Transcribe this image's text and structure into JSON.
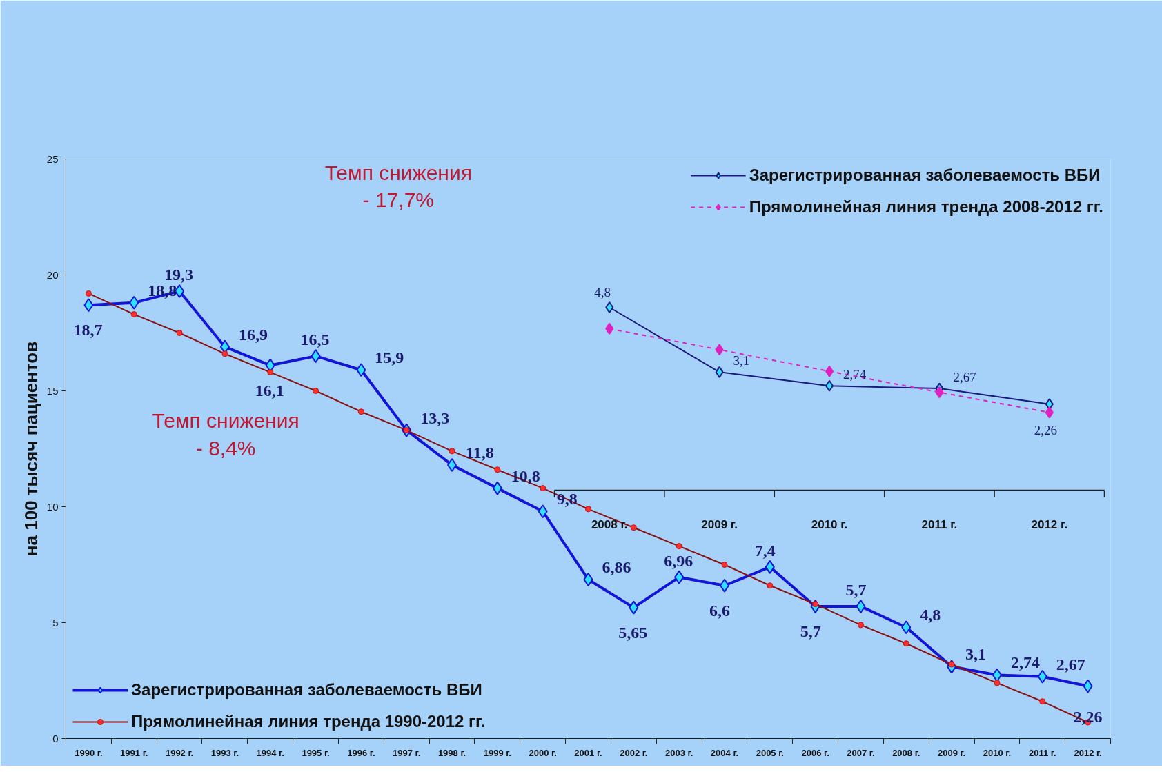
{
  "chart_data": [
    {
      "type": "line",
      "ylabel": "на 100 тысяч пациентов",
      "categories": [
        "1990 г.",
        "1991 г.",
        "1992 г.",
        "1993 г.",
        "1994 г.",
        "1995 г.",
        "1996 г.",
        "1997 г.",
        "1998 г.",
        "1999 г.",
        "2000 г.",
        "2001 г.",
        "2002 г.",
        "2003 г.",
        "2004 г.",
        "2005 г.",
        "2006 г.",
        "2007 г.",
        "2008 г.",
        "2009 г.",
        "2010 г.",
        "2011 г.",
        "2012 г."
      ],
      "series": [
        {
          "name": "Зарегистрированная заболеваемость ВБИ",
          "color": "#1414d8",
          "marker": "diamond",
          "values": [
            18.7,
            18.8,
            19.3,
            16.9,
            16.1,
            16.5,
            15.9,
            13.3,
            11.8,
            10.8,
            9.8,
            6.86,
            5.65,
            6.96,
            6.6,
            7.4,
            5.7,
            5.7,
            4.8,
            3.1,
            2.74,
            2.67,
            2.26
          ],
          "value_labels": [
            "18,7",
            "18,8",
            "19,3",
            "16,9",
            "16,1",
            "16,5",
            "15,9",
            "13,3",
            "11,8",
            "10,8",
            "9,8",
            "6,86",
            "5,65",
            "6,96",
            "6,6",
            "7,4",
            "5,7",
            "5,7",
            "4,8",
            "3,1",
            "2,74",
            "2,67",
            "2,26"
          ]
        },
        {
          "name": "Прямолинейная линия тренда 1990-2012 гг.",
          "color": "#8b1010",
          "marker": "circle",
          "values": [
            19.2,
            18.3,
            17.5,
            16.6,
            15.8,
            15.0,
            14.1,
            13.3,
            12.4,
            11.6,
            10.8,
            9.9,
            9.1,
            8.3,
            7.5,
            6.6,
            5.8,
            4.9,
            4.1,
            3.2,
            2.4,
            1.6,
            0.7
          ]
        }
      ],
      "ylim": [
        0,
        25
      ],
      "yticks": [
        0,
        5,
        10,
        15,
        20,
        25
      ],
      "grid": false,
      "legend": "bottom left",
      "annotations": [
        "Темп снижения\n- 8,4%",
        "Темп снижения\n- 17,7%"
      ]
    },
    {
      "type": "line",
      "categories": [
        "2008 г.",
        "2009 г.",
        "2010 г.",
        "2011 г.",
        "2012 г."
      ],
      "series": [
        {
          "name": "Зарегистрированная заболеваемость ВБИ",
          "color": "#1a1a80",
          "marker": "diamond",
          "values": [
            4.8,
            3.1,
            2.74,
            2.67,
            2.26
          ],
          "value_labels": [
            "4,8",
            "3,1",
            "2,74",
            "2,67",
            "2,26"
          ]
        },
        {
          "name": "Прямолинейная линия тренда 2008-2012 гг.",
          "color": "#e020c0",
          "marker": "diamond",
          "line_style": "dashed",
          "values": [
            4.24,
            3.69,
            3.12,
            2.57,
            2.04
          ]
        }
      ],
      "tick_labels": "x",
      "legend": "top right"
    }
  ]
}
